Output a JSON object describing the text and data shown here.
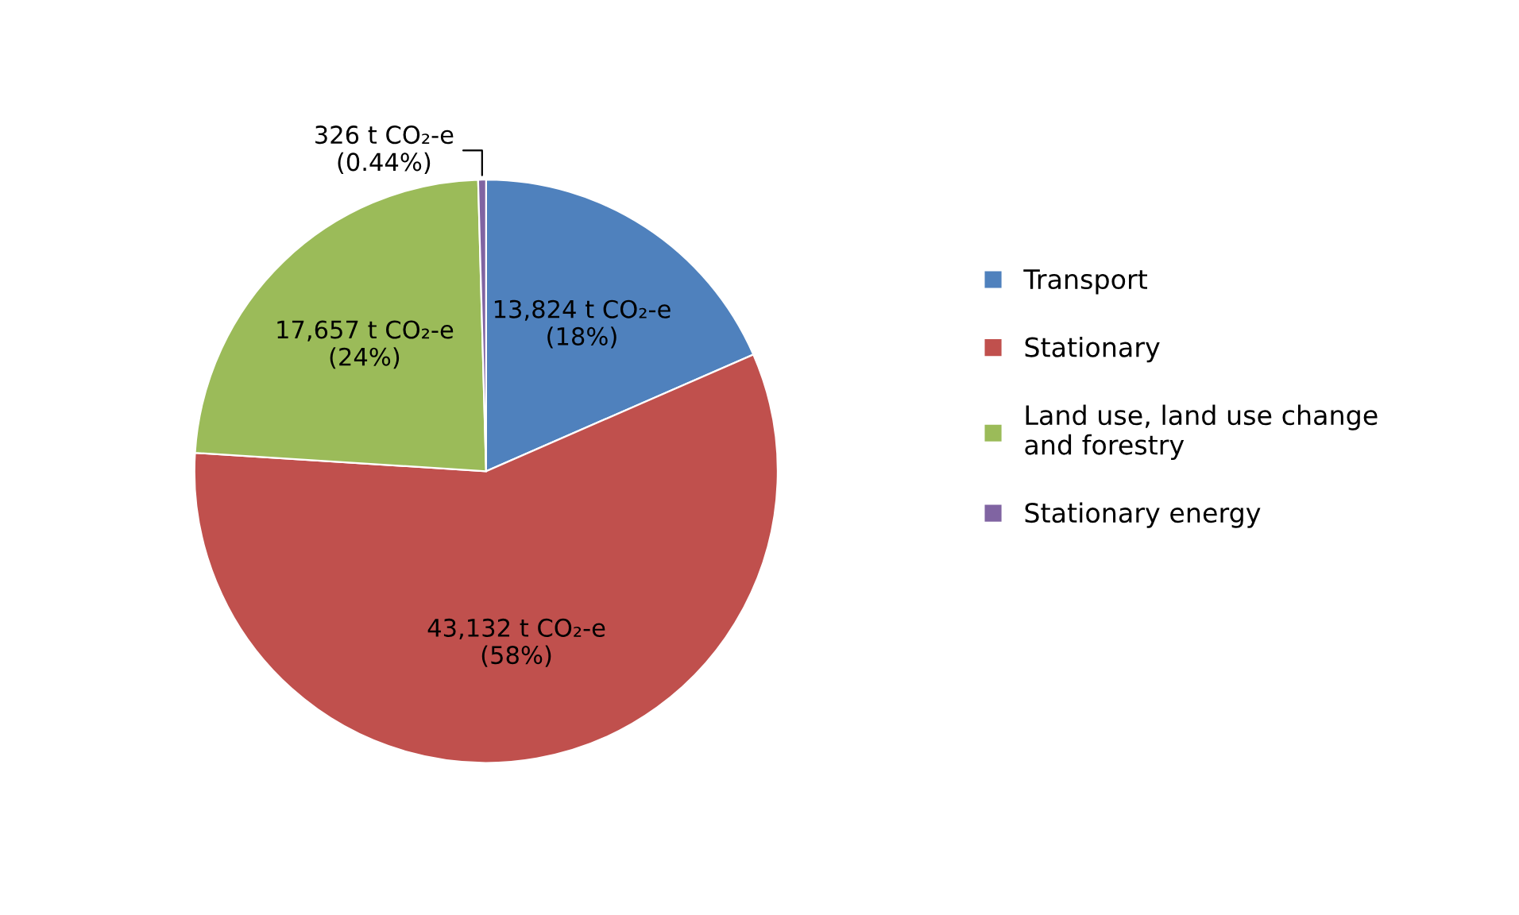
{
  "chart_data": {
    "type": "pie",
    "categories": [
      "Transport",
      "Stationary",
      "Land use, land use change\nand forestry",
      "Stationary energy"
    ],
    "values": [
      13824,
      43132,
      17657,
      326
    ],
    "colors": [
      "#4f81bd",
      "#c0504d",
      "#9bbb59",
      "#8064a2"
    ],
    "value_labels": [
      "13,824 t CO₂-e\n(18%)",
      "43,132 t CO₂-e\n(58%)",
      "17,657 t CO₂-e\n(24%)",
      "326 t CO₂-e\n(0.44%)"
    ],
    "legend": "right"
  }
}
